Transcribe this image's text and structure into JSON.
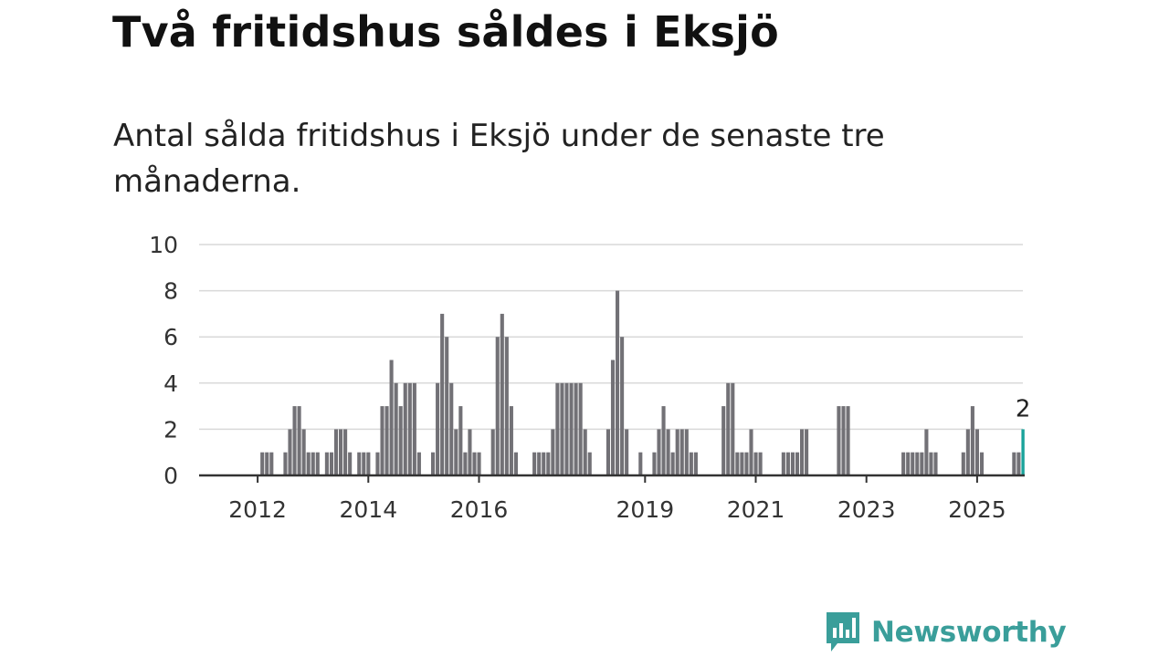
{
  "title": "Två fritidshus såldes i Eksjö",
  "subtitle": "Antal sålda fritidshus i Eksjö under de senaste tre månaderna.",
  "brand": {
    "name": "Newsworthy",
    "icon": "newsworthy-logo-icon",
    "color": "#3a9e9a"
  },
  "colors": {
    "bar": "#727176",
    "highlight": "#1aa39b",
    "grid": "#d9d9d9",
    "axis": "#333333"
  },
  "chart_data": {
    "type": "bar",
    "title": "Två fritidshus såldes i Eksjö",
    "subtitle": "Antal sålda fritidshus i Eksjö under de senaste tre månaderna.",
    "xlabel": "",
    "ylabel": "",
    "ylim": [
      0,
      10
    ],
    "yticks": [
      0,
      2,
      4,
      6,
      8,
      10
    ],
    "grid": true,
    "x_unit": "month",
    "start": "2011-01",
    "xticks": [
      {
        "label": "2012",
        "index": 12
      },
      {
        "label": "2014",
        "index": 36
      },
      {
        "label": "2016",
        "index": 60
      },
      {
        "label": "2019",
        "index": 96
      },
      {
        "label": "2021",
        "index": 120
      },
      {
        "label": "2023",
        "index": 144
      },
      {
        "label": "2025",
        "index": 168
      }
    ],
    "values": [
      0,
      0,
      0,
      0,
      0,
      0,
      0,
      0,
      0,
      0,
      0,
      0,
      0,
      1,
      1,
      1,
      0,
      0,
      1,
      2,
      3,
      3,
      2,
      1,
      1,
      1,
      0,
      1,
      1,
      2,
      2,
      2,
      1,
      0,
      1,
      1,
      1,
      0,
      1,
      3,
      3,
      5,
      4,
      3,
      4,
      4,
      4,
      1,
      0,
      0,
      1,
      4,
      7,
      6,
      4,
      2,
      3,
      1,
      2,
      1,
      1,
      0,
      0,
      2,
      6,
      7,
      6,
      3,
      1,
      0,
      0,
      0,
      1,
      1,
      1,
      1,
      2,
      4,
      4,
      4,
      4,
      4,
      4,
      2,
      1,
      0,
      0,
      0,
      2,
      5,
      8,
      6,
      2,
      0,
      0,
      1,
      0,
      0,
      1,
      2,
      3,
      2,
      1,
      2,
      2,
      2,
      1,
      1,
      0,
      0,
      0,
      0,
      0,
      3,
      4,
      4,
      1,
      1,
      1,
      2,
      1,
      1,
      0,
      0,
      0,
      0,
      1,
      1,
      1,
      1,
      2,
      2,
      0,
      0,
      0,
      0,
      0,
      0,
      3,
      3,
      3,
      0,
      0,
      0,
      0,
      0,
      0,
      0,
      0,
      0,
      0,
      0,
      1,
      1,
      1,
      1,
      1,
      2,
      1,
      1,
      0,
      0,
      0,
      0,
      0,
      1,
      2,
      3,
      2,
      1,
      0,
      0,
      0,
      0,
      0,
      0,
      1,
      1,
      2
    ],
    "highlight_index": 178,
    "highlight_label": "2",
    "xlim_months": [
      0,
      180
    ]
  }
}
